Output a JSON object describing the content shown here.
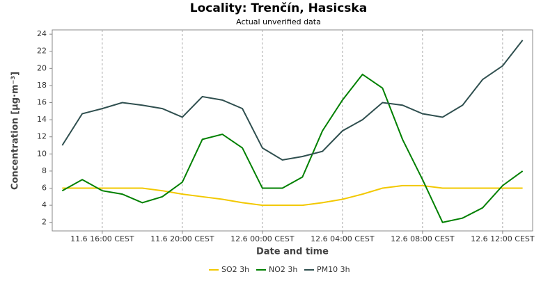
{
  "chart_data": {
    "type": "line",
    "title": "Locality: Trenčín, Hasicska",
    "subtitle": "Actual unverified data",
    "x_label": "Date and time",
    "y_label": "Concentration [µg·m⁻³]",
    "categories": [
      null,
      null,
      "11.6 16:00 CEST",
      null,
      null,
      null,
      "11.6 20:00 CEST",
      null,
      null,
      null,
      "12.6 00:00 CEST",
      null,
      null,
      null,
      "12.6 04:00 CEST",
      null,
      null,
      null,
      "12.6 08:00 CEST",
      null,
      null,
      null,
      "12.6 12:00 CEST",
      null
    ],
    "series": [
      {
        "name": "SO2 3h",
        "color": "#f2c800",
        "values": [
          6,
          6,
          6,
          6,
          6,
          5.7,
          5.3,
          5,
          4.7,
          4.3,
          4,
          4,
          4,
          4.3,
          4.7,
          5.3,
          6,
          6.3,
          6.3,
          6,
          6,
          6,
          6,
          6
        ]
      },
      {
        "name": "NO2 3h",
        "color": "#008000",
        "values": [
          5.7,
          7,
          5.7,
          5.3,
          4.3,
          5,
          6.7,
          11.7,
          12.3,
          10.7,
          6,
          6,
          7.3,
          12.7,
          16.3,
          19.3,
          17.7,
          11.7,
          7,
          2,
          2.5,
          3.7,
          6.3,
          8
        ]
      },
      {
        "name": "PM10 3h",
        "color": "#2f4f4f",
        "values": [
          11,
          14.7,
          15.3,
          16,
          15.7,
          15.3,
          14.3,
          16.7,
          16.3,
          15.3,
          10.7,
          9.3,
          9.7,
          10.3,
          12.7,
          14,
          16,
          15.7,
          14.7,
          14.3,
          15.7,
          18.7,
          20.3,
          23.3
        ]
      }
    ],
    "ylim": [
      1,
      24.5
    ],
    "yticks": [
      2,
      4,
      6,
      8,
      10,
      12,
      14,
      16,
      18,
      20,
      22,
      24
    ],
    "grid": true
  }
}
